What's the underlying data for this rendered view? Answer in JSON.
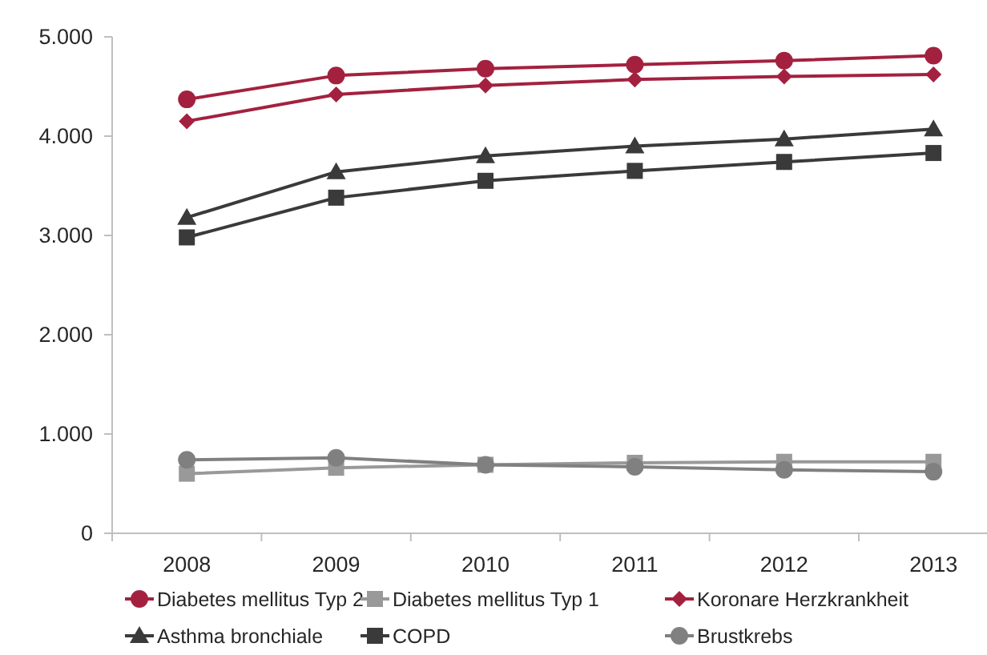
{
  "chart_data": {
    "type": "line",
    "categories": [
      "2008",
      "2009",
      "2010",
      "2011",
      "2012",
      "2013"
    ],
    "series": [
      {
        "name": "Diabetes mellitus Typ 2",
        "color": "#a3213f",
        "marker": "circle",
        "values": [
          4370,
          4610,
          4680,
          4720,
          4760,
          4810
        ]
      },
      {
        "name": "Diabetes mellitus Typ 1",
        "color": "#999999",
        "marker": "square",
        "values": [
          600,
          660,
          690,
          710,
          720,
          720
        ]
      },
      {
        "name": "Koronare Herzkrankheit",
        "color": "#a3213f",
        "marker": "diamond",
        "values": [
          4150,
          4420,
          4510,
          4570,
          4600,
          4620
        ]
      },
      {
        "name": "Asthma bronchiale",
        "color": "#3a3a3a",
        "marker": "triangle",
        "values": [
          3180,
          3640,
          3800,
          3900,
          3970,
          4070
        ]
      },
      {
        "name": "COPD",
        "color": "#3a3a3a",
        "marker": "square",
        "values": [
          2980,
          3380,
          3550,
          3650,
          3740,
          3830
        ]
      },
      {
        "name": "Brustkrebs",
        "color": "#808080",
        "marker": "circle",
        "values": [
          740,
          760,
          690,
          670,
          640,
          620
        ]
      }
    ],
    "ylim": [
      0,
      5000
    ],
    "yticks": [
      0,
      {
        "value": 1000,
        "label": "1.000"
      },
      {
        "value": 2000,
        "label": "2.000"
      },
      {
        "value": 3000,
        "label": "3.000"
      },
      {
        "value": 4000,
        "label": "4.000"
      },
      {
        "value": 5000,
        "label": "5.000"
      }
    ],
    "grid": false,
    "legend": "bottom",
    "line_style": "solid"
  }
}
